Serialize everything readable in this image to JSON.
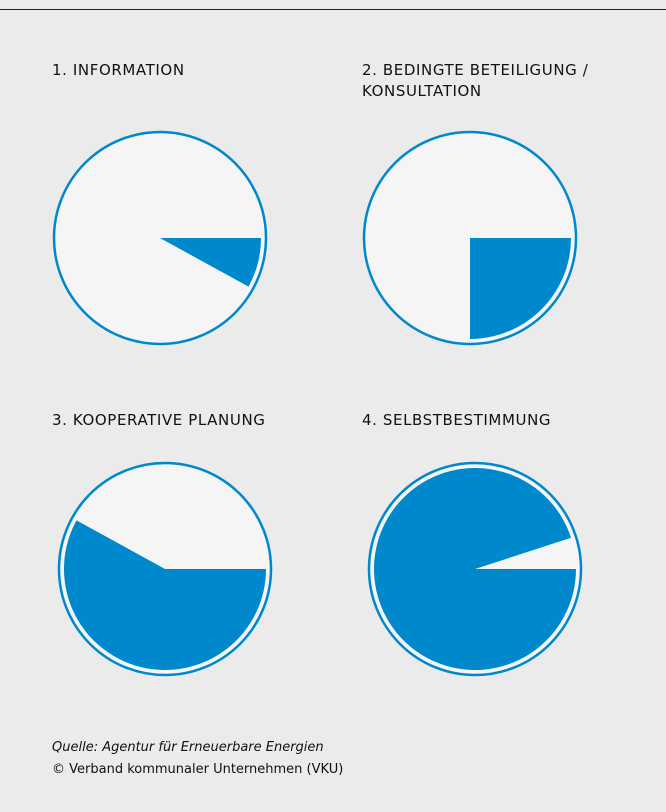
{
  "colors": {
    "background": "#ebebeb",
    "accent": "#0088cc",
    "ring": "#0088cc",
    "inner": "#f5f5f5"
  },
  "chart_data": [
    {
      "type": "pie",
      "title": "1. INFORMATION",
      "values": [
        0.08
      ],
      "start_angle_deg": 0,
      "note": "filled wedge clockwise from 3 o'clock"
    },
    {
      "type": "pie",
      "title": "2. BEDINGTE BETEILIGUNG / KONSULTATION",
      "values": [
        0.25
      ],
      "start_angle_deg": 0
    },
    {
      "type": "pie",
      "title": "3. KOOPERATIVE PLANUNG",
      "values": [
        0.58
      ],
      "start_angle_deg": 0
    },
    {
      "type": "pie",
      "title": "4. SELBSTBESTIMMUNG",
      "values": [
        0.95
      ],
      "start_angle_deg": 0
    }
  ],
  "footer": {
    "source": "Quelle: Agentur für Erneuerbare Energien",
    "copyright": "© Verband kommunaler Unternehmen (VKU)"
  }
}
